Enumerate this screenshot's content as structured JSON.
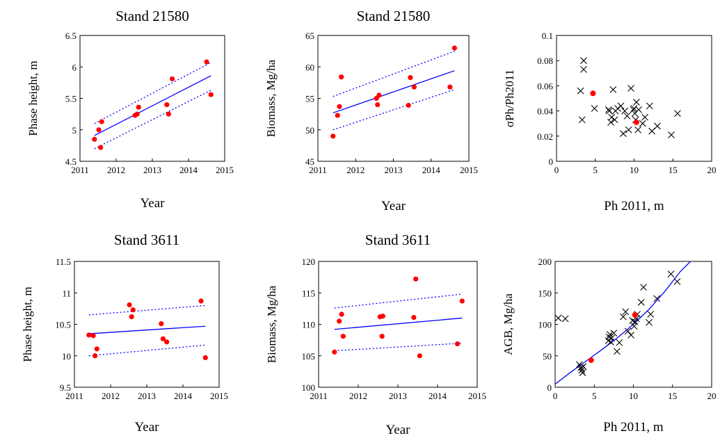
{
  "chart_data": [
    {
      "type": "scatter",
      "title": "Stand 21580",
      "xlabel": "Year",
      "ylabel": "Phase height, m",
      "xlim": [
        2011,
        2015
      ],
      "ylim": [
        4.5,
        6.5
      ],
      "xticks": [
        "2011",
        "2012",
        "2013",
        "2014",
        "2015"
      ],
      "yticks": [
        "4.5",
        "5",
        "5.5",
        "6",
        "6.5"
      ],
      "points": {
        "x": [
          2011.4,
          2011.52,
          2011.57,
          2011.6,
          2012.52,
          2012.58,
          2012.62,
          2013.4,
          2013.45,
          2013.55,
          2014.5,
          2014.62
        ],
        "y": [
          4.85,
          5.0,
          4.72,
          5.13,
          5.23,
          5.25,
          5.36,
          5.4,
          5.25,
          5.81,
          6.08,
          5.56
        ]
      },
      "fit": {
        "x": [
          2011.4,
          2014.62
        ],
        "y": [
          4.91,
          5.86
        ]
      },
      "ci_upper": {
        "x": [
          2011.4,
          2014.62
        ],
        "y": [
          5.1,
          6.07
        ]
      },
      "ci_lower": {
        "x": [
          2011.4,
          2014.62
        ],
        "y": [
          4.7,
          5.63
        ]
      }
    },
    {
      "type": "scatter",
      "title": "Stand 21580",
      "xlabel": "Year",
      "ylabel": "Biomass, Mg/ha",
      "xlim": [
        2011,
        2015
      ],
      "ylim": [
        45,
        65
      ],
      "xticks": [
        "2011",
        "2012",
        "2013",
        "2014",
        "2015"
      ],
      "yticks": [
        "45",
        "50",
        "55",
        "60",
        "65"
      ],
      "points": {
        "x": [
          2011.4,
          2011.52,
          2011.57,
          2011.62,
          2012.55,
          2012.58,
          2012.62,
          2013.4,
          2013.45,
          2013.55,
          2014.5,
          2014.62
        ],
        "y": [
          49.0,
          52.3,
          53.7,
          58.4,
          55.0,
          54.0,
          55.5,
          53.9,
          58.3,
          56.8,
          56.8,
          63.0
        ]
      },
      "fit": {
        "x": [
          2011.4,
          2014.62
        ],
        "y": [
          52.7,
          59.4
        ]
      },
      "ci_upper": {
        "x": [
          2011.4,
          2014.62
        ],
        "y": [
          55.3,
          62.5
        ]
      },
      "ci_lower": {
        "x": [
          2011.4,
          2014.62
        ],
        "y": [
          50.0,
          56.4
        ]
      }
    },
    {
      "type": "scatter",
      "title": "",
      "xlabel": "Ph 2011, m",
      "ylabel": "σPh/Ph2011",
      "xlim": [
        0,
        20
      ],
      "ylim": [
        0,
        0.1
      ],
      "xticks": [
        "0",
        "5",
        "10",
        "15",
        "20"
      ],
      "yticks": [
        "0",
        "0.02",
        "0.04",
        "0.06",
        "0.08",
        "0.1"
      ],
      "crosses": {
        "x": [
          3.1,
          3.3,
          3.5,
          3.5,
          4.9,
          6.7,
          6.8,
          7.0,
          7.1,
          7.3,
          7.5,
          7.6,
          7.9,
          8.3,
          8.6,
          8.8,
          9.1,
          9.3,
          9.6,
          9.9,
          10.0,
          10.1,
          10.2,
          10.3,
          10.5,
          10.6,
          11.1,
          11.4,
          12.0,
          12.3,
          13.0,
          14.8,
          15.6
        ],
        "y": [
          0.056,
          0.033,
          0.073,
          0.08,
          0.042,
          0.041,
          0.04,
          0.031,
          0.035,
          0.057,
          0.033,
          0.04,
          0.042,
          0.044,
          0.022,
          0.04,
          0.036,
          0.025,
          0.058,
          0.041,
          0.042,
          0.038,
          0.033,
          0.047,
          0.025,
          0.041,
          0.03,
          0.035,
          0.044,
          0.024,
          0.028,
          0.021,
          0.038
        ]
      },
      "red_points": {
        "x": [
          4.7,
          10.3
        ],
        "y": [
          0.054,
          0.031
        ]
      }
    },
    {
      "type": "scatter",
      "title": "Stand 3611",
      "xlabel": "Year",
      "ylabel": "Phase height, m",
      "xlim": [
        2011,
        2015
      ],
      "ylim": [
        9.5,
        11.5
      ],
      "xticks": [
        "2011",
        "2012",
        "2013",
        "2014",
        "2015"
      ],
      "yticks": [
        "9.5",
        "10",
        "10.5",
        "11",
        "11.5"
      ],
      "points": {
        "x": [
          2011.4,
          2011.52,
          2011.57,
          2011.62,
          2012.52,
          2012.58,
          2012.62,
          2013.4,
          2013.45,
          2013.55,
          2014.5,
          2014.62
        ],
        "y": [
          10.33,
          10.32,
          10.0,
          10.11,
          10.81,
          10.62,
          10.73,
          10.51,
          10.27,
          10.22,
          10.87,
          9.97
        ]
      },
      "fit": {
        "x": [
          2011.4,
          2014.62
        ],
        "y": [
          10.35,
          10.47
        ]
      },
      "ci_upper": {
        "x": [
          2011.4,
          2014.62
        ],
        "y": [
          10.65,
          10.8
        ]
      },
      "ci_lower": {
        "x": [
          2011.4,
          2014.62
        ],
        "y": [
          10.0,
          10.17
        ]
      }
    },
    {
      "type": "scatter",
      "title": "Stand 3611",
      "xlabel": "Year",
      "ylabel": "Biomass, Mg/ha",
      "xlim": [
        2011,
        2015
      ],
      "ylim": [
        100,
        120
      ],
      "xticks": [
        "2011",
        "2012",
        "2013",
        "2014",
        "2015"
      ],
      "yticks": [
        "100",
        "105",
        "110",
        "115",
        "120"
      ],
      "points": {
        "x": [
          2011.4,
          2011.52,
          2011.58,
          2011.62,
          2012.55,
          2012.6,
          2012.62,
          2013.4,
          2013.45,
          2013.55,
          2014.5,
          2014.62
        ],
        "y": [
          105.6,
          110.5,
          111.6,
          108.1,
          111.2,
          108.1,
          111.3,
          111.1,
          117.2,
          105.0,
          106.9,
          113.7
        ]
      },
      "fit": {
        "x": [
          2011.4,
          2014.62
        ],
        "y": [
          109.2,
          111.0
        ]
      },
      "ci_upper": {
        "x": [
          2011.4,
          2014.62
        ],
        "y": [
          112.6,
          114.8
        ]
      },
      "ci_lower": {
        "x": [
          2011.4,
          2014.62
        ],
        "y": [
          105.8,
          107.0
        ]
      }
    },
    {
      "type": "scatter",
      "title": "",
      "xlabel": "Ph 2011, m",
      "ylabel": "AGB, Mg/ha",
      "xlim": [
        0,
        20
      ],
      "ylim": [
        0,
        200
      ],
      "xticks": [
        "0",
        "5",
        "10",
        "15",
        "20"
      ],
      "yticks": [
        "0",
        "50",
        "100",
        "150",
        "200"
      ],
      "crosses": {
        "x": [
          0.4,
          1.3,
          3.1,
          3.3,
          3.4,
          3.5,
          3.6,
          6.8,
          6.9,
          7.0,
          7.1,
          7.2,
          7.5,
          7.9,
          8.2,
          8.7,
          9.0,
          9.3,
          9.7,
          9.9,
          10.1,
          10.2,
          10.4,
          10.5,
          11.0,
          11.3,
          12.0,
          12.2,
          13.0,
          14.8,
          15.6
        ],
        "y": [
          110,
          109,
          36,
          31,
          27,
          23,
          33,
          74,
          80,
          84,
          72,
          78,
          86,
          57,
          71,
          112,
          120,
          89,
          83,
          106,
          97,
          104,
          109,
          116,
          135,
          159,
          103,
          116,
          141,
          180,
          168
        ]
      },
      "red_points": {
        "x": [
          4.6,
          10.2
        ],
        "y": [
          43,
          115
        ]
      },
      "curve": {
        "x": [
          0,
          2,
          4,
          6,
          8,
          10,
          12,
          14,
          16,
          17.3
        ],
        "y": [
          5,
          24,
          42,
          60,
          79,
          100,
          124,
          152,
          184,
          200
        ]
      }
    }
  ]
}
